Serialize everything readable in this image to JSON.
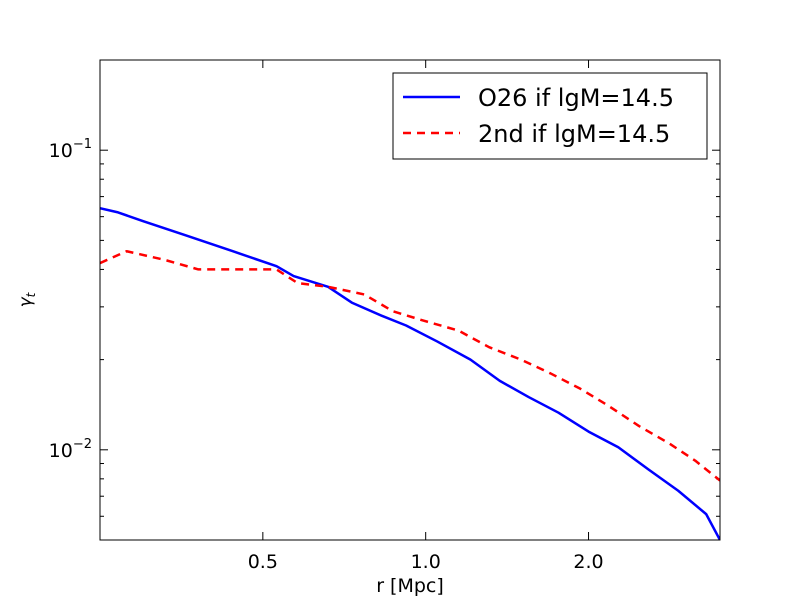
{
  "chart_data": {
    "type": "line",
    "title": "",
    "xlabel": "r [Mpc]",
    "ylabel": "γt",
    "ylabel_main": "γ",
    "ylabel_sub": "t",
    "xscale": "log",
    "yscale": "log",
    "xlim": [
      0.25,
      3.5
    ],
    "ylim": [
      0.005,
      0.2
    ],
    "x_ticks": [
      {
        "value": 0.5,
        "label": "0.5"
      },
      {
        "value": 1.0,
        "label": "1.0"
      },
      {
        "value": 2.0,
        "label": "2.0"
      }
    ],
    "y_ticks": [
      {
        "value": 0.1,
        "base": "10",
        "exp": "−1"
      },
      {
        "value": 0.01,
        "base": "10",
        "exp": "−2"
      }
    ],
    "legend_position": "top-right",
    "series": [
      {
        "name": "O26 if lgM=14.5",
        "color": "#0000ff",
        "style": "solid",
        "x": [
          0.25,
          0.27,
          0.3,
          0.36,
          0.44,
          0.53,
          0.57,
          0.66,
          0.73,
          0.83,
          0.92,
          1.05,
          1.21,
          1.37,
          1.55,
          1.76,
          2.0,
          2.27,
          2.58,
          2.93,
          3.3,
          3.5
        ],
        "y": [
          0.064,
          0.062,
          0.058,
          0.052,
          0.046,
          0.041,
          0.038,
          0.035,
          0.031,
          0.028,
          0.026,
          0.023,
          0.02,
          0.017,
          0.015,
          0.0133,
          0.0115,
          0.0102,
          0.0086,
          0.0073,
          0.0061,
          0.005
        ]
      },
      {
        "name": "2nd if lgM=14.5",
        "color": "#ff0000",
        "style": "dashed",
        "x": [
          0.25,
          0.28,
          0.33,
          0.38,
          0.46,
          0.53,
          0.58,
          0.66,
          0.77,
          0.87,
          0.99,
          1.15,
          1.31,
          1.5,
          1.7,
          1.93,
          2.18,
          2.48,
          2.82,
          3.15,
          3.5
        ],
        "y": [
          0.042,
          0.046,
          0.043,
          0.04,
          0.04,
          0.04,
          0.036,
          0.035,
          0.033,
          0.029,
          0.027,
          0.025,
          0.022,
          0.02,
          0.018,
          0.016,
          0.014,
          0.012,
          0.0105,
          0.0092,
          0.0079
        ]
      }
    ]
  }
}
